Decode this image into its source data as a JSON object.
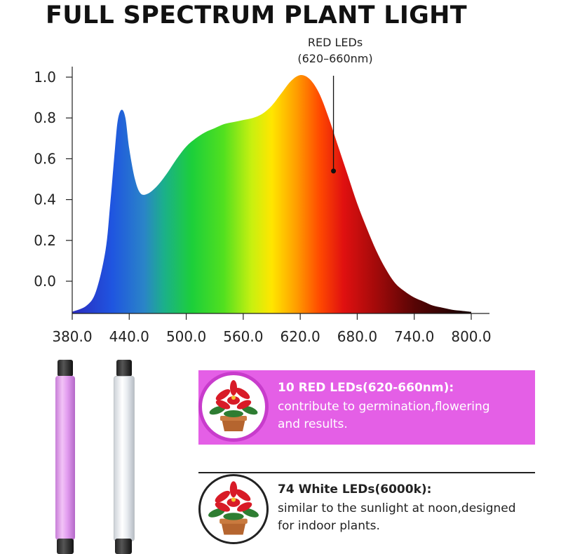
{
  "header": {
    "title": "FULL SPECTRUM PLANT LIGHT"
  },
  "chart_data": {
    "type": "area",
    "title": "FULL SPECTRUM PLANT LIGHT",
    "xlabel": "",
    "ylabel": "",
    "xlim": [
      380,
      800
    ],
    "ylim": [
      -0.15,
      1.05
    ],
    "xticks": [
      380,
      440,
      500,
      560,
      620,
      680,
      740,
      800
    ],
    "xtick_labels": [
      "380.0",
      "440.0",
      "500.0",
      "560.0",
      "620.0",
      "680.0",
      "740.0",
      "800.0"
    ],
    "yticks": [
      0.0,
      0.2,
      0.4,
      0.6,
      0.8,
      1.0
    ],
    "ytick_labels": [
      "0.0",
      "0.2",
      "0.4",
      "0.6",
      "0.8",
      "1.0"
    ],
    "grid": false,
    "fill": "wavelength-color-gradient",
    "series": [
      {
        "x": [
          380,
          395,
          405,
          415,
          420,
          425,
          428,
          432,
          436,
          440,
          446,
          452,
          460,
          470,
          480,
          490,
          500,
          510,
          520,
          530,
          540,
          550,
          560,
          570,
          580,
          590,
          600,
          610,
          620,
          630,
          640,
          650,
          660,
          670,
          680,
          690,
          700,
          710,
          720,
          730,
          740,
          750,
          760,
          770,
          780,
          790,
          800
        ],
        "y": [
          -0.15,
          -0.12,
          -0.05,
          0.15,
          0.38,
          0.65,
          0.79,
          0.84,
          0.8,
          0.65,
          0.5,
          0.43,
          0.43,
          0.47,
          0.53,
          0.6,
          0.66,
          0.7,
          0.73,
          0.75,
          0.77,
          0.78,
          0.79,
          0.8,
          0.82,
          0.86,
          0.92,
          0.98,
          1.01,
          0.99,
          0.92,
          0.8,
          0.66,
          0.52,
          0.38,
          0.26,
          0.15,
          0.06,
          -0.01,
          -0.05,
          -0.08,
          -0.1,
          -0.12,
          -0.13,
          -0.14,
          -0.145,
          -0.15
        ]
      }
    ],
    "annotation": {
      "line1": "RED LEDs",
      "line2": "(620–660nm)",
      "x": 655,
      "y": 0.54
    }
  },
  "colors": {
    "pink": "#e45fe6",
    "pink_border": "#c83ccc",
    "text_dark": "#222222"
  },
  "info_rows": [
    {
      "icon": "poinsettia-icon",
      "heading": "10 RED LEDs(620-660nm):",
      "line1": "contribute to germination,flowering",
      "line2": "and results."
    },
    {
      "icon": "poinsettia-icon",
      "heading": "74 White LEDs(6000k):",
      "line1": "similar to the sunlight at noon,designed",
      "line2": " for indoor plants."
    }
  ]
}
